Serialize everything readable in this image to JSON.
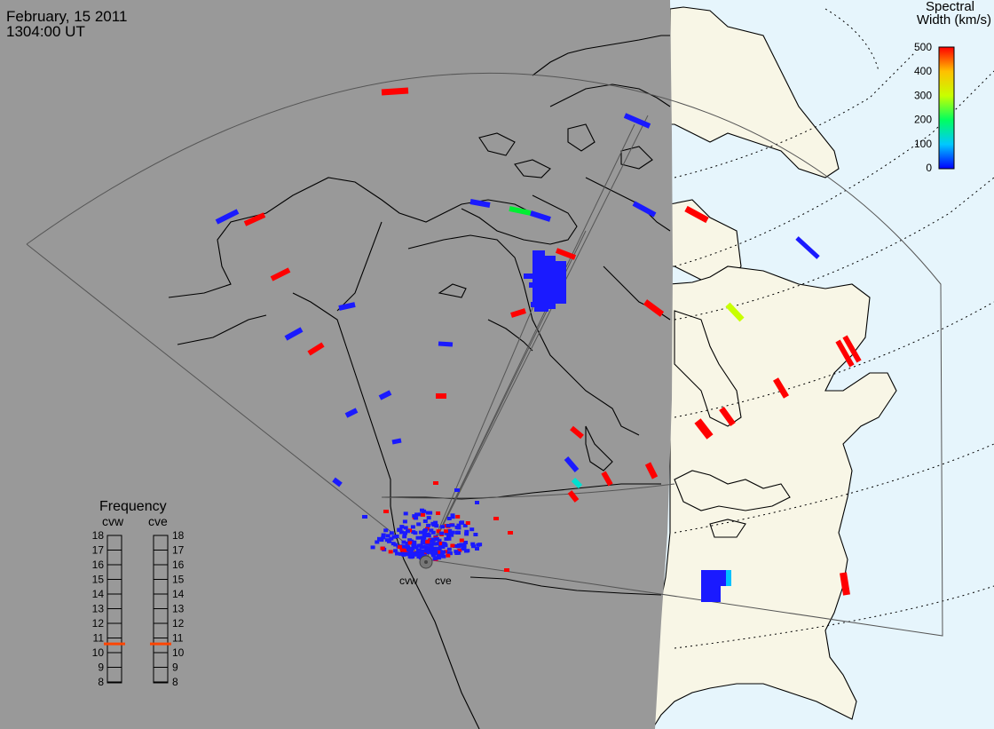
{
  "header": {
    "date": "February, 15 2011",
    "time": "1304:00 UT"
  },
  "colorbar": {
    "title_line1": "Spectral",
    "title_line2": "Width (km/s)",
    "ticks": [
      "500",
      "400",
      "300",
      "200",
      "100",
      "0"
    ],
    "scale_min": 0,
    "scale_max": 500,
    "colors": [
      "#0000ff",
      "#00c8ff",
      "#00ff60",
      "#c8ff00",
      "#ffd000",
      "#ff0000"
    ]
  },
  "radars": {
    "west": "cvw",
    "east": "cve"
  },
  "frequency": {
    "title": "Frequency",
    "col_west": "cvw",
    "col_east": "cve",
    "ticks": [
      "18",
      "17",
      "16",
      "15",
      "14",
      "13",
      "12",
      "11",
      "10",
      "9",
      "8"
    ],
    "range_mhz": [
      8,
      18
    ],
    "cvw_value_mhz": 10.6,
    "cve_value_mhz": 10.6,
    "marker_color": "#ff4500"
  },
  "map": {
    "night_color": "#999999",
    "day_ocean_color": "#e6f5fc",
    "day_land_color": "#f8f6e6",
    "terminator": "day/night terminator"
  }
}
